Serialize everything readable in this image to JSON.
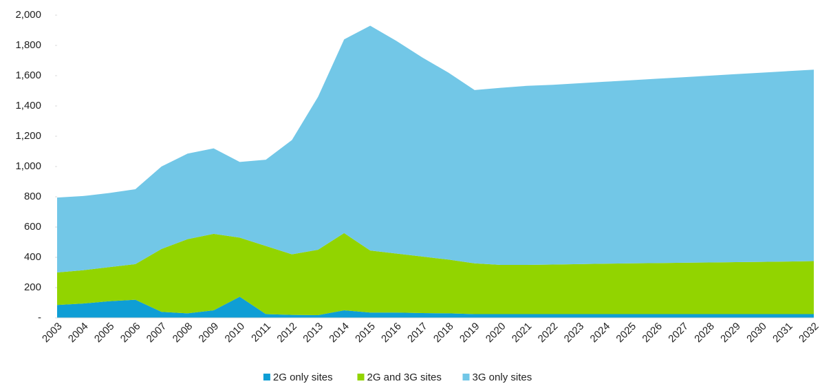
{
  "chart_data": {
    "type": "stacked_area",
    "categories": [
      "2003",
      "2004",
      "2005",
      "2006",
      "2007",
      "2008",
      "2009",
      "2010",
      "2011",
      "2012",
      "2013",
      "2014",
      "2015",
      "2016",
      "2017",
      "2018",
      "2019",
      "2020",
      "2021",
      "2022",
      "2023",
      "2024",
      "2025",
      "2026",
      "2027",
      "2028",
      "2029",
      "2030",
      "2031",
      "2032"
    ],
    "series": [
      {
        "name": "2G only sites",
        "color": "#0f9ed5",
        "values": [
          85,
          95,
          110,
          120,
          40,
          30,
          50,
          140,
          25,
          20,
          18,
          50,
          35,
          35,
          32,
          30,
          25,
          25,
          25,
          25,
          25,
          25,
          25,
          25,
          25,
          25,
          25,
          25,
          25,
          25
        ]
      },
      {
        "name": "2G and 3G sites",
        "color": "#92d400",
        "values": [
          215,
          220,
          225,
          235,
          415,
          490,
          505,
          390,
          450,
          400,
          432,
          510,
          410,
          390,
          373,
          355,
          335,
          325,
          325,
          327,
          330,
          333,
          335,
          337,
          339,
          341,
          343,
          345,
          347,
          350
        ]
      },
      {
        "name": "3G only sites",
        "color": "#72c7e7",
        "values": [
          495,
          490,
          490,
          495,
          545,
          565,
          565,
          500,
          570,
          755,
          1010,
          1280,
          1485,
          1405,
          1315,
          1235,
          1145,
          1170,
          1183,
          1188,
          1195,
          1202,
          1210,
          1218,
          1226,
          1234,
          1242,
          1250,
          1258,
          1265
        ]
      }
    ],
    "ylim": [
      0,
      2000
    ],
    "yticks": [
      {
        "value": 0,
        "label": "-"
      },
      200,
      400,
      600,
      800,
      {
        "value": 1000,
        "label": "1,000"
      },
      {
        "value": 1200,
        "label": "1,200"
      },
      {
        "value": 1400,
        "label": "1,400"
      },
      {
        "value": 1600,
        "label": "1,600"
      },
      {
        "value": 1800,
        "label": "1,800"
      },
      {
        "value": 2000,
        "label": "2,000"
      }
    ],
    "legend": "bottom"
  }
}
